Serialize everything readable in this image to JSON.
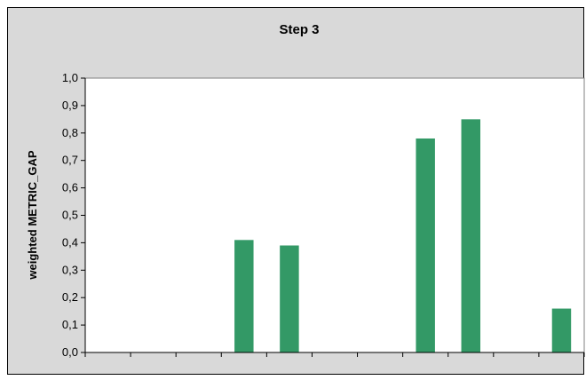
{
  "chart_data": {
    "type": "bar",
    "title": "Step 3",
    "xlabel": "",
    "ylabel": "weighted METRIC_GAP",
    "ylim": [
      0,
      1.0
    ],
    "y_ticks": [
      "0,0",
      "0,1",
      "0,2",
      "0,3",
      "0,4",
      "0,5",
      "0,6",
      "0,7",
      "0,8",
      "0,9",
      "1,0"
    ],
    "categories": [
      "",
      "",
      "",
      "",
      "",
      "",
      "",
      "",
      "",
      "",
      ""
    ],
    "values": [
      0,
      0,
      0,
      0.41,
      0.39,
      0,
      0,
      0.78,
      0.85,
      0,
      0.16
    ],
    "bar_color": "#339966",
    "grid": false,
    "legend": "none"
  }
}
